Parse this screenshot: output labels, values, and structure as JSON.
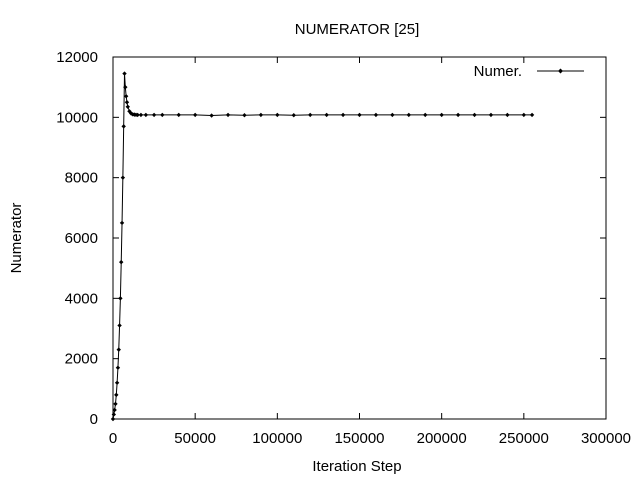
{
  "chart_data": {
    "type": "line",
    "title": "NUMERATOR [25]",
    "xlabel": "Iteration Step",
    "ylabel": "Numerator",
    "xlim": [
      0,
      300000
    ],
    "ylim": [
      0,
      12000
    ],
    "x_ticks": [
      0,
      50000,
      100000,
      150000,
      200000,
      250000,
      300000
    ],
    "x_tick_labels": [
      "0",
      "50000",
      "100000",
      "150000",
      "200000",
      "250000",
      "300000"
    ],
    "y_ticks": [
      0,
      2000,
      4000,
      6000,
      8000,
      10000,
      12000
    ],
    "y_tick_labels": [
      "0",
      "2000",
      "4000",
      "6000",
      "8000",
      "10000",
      "12000"
    ],
    "grid": false,
    "legend_position": "top-right",
    "series": [
      {
        "name": "Numer.",
        "color": "#000000",
        "marker": "diamond",
        "x": [
          0,
          500,
          1000,
          1500,
          2000,
          2500,
          3000,
          3500,
          4000,
          4500,
          5000,
          5500,
          6000,
          6500,
          7000,
          7500,
          8000,
          8500,
          9000,
          10000,
          11000,
          12000,
          13000,
          14000,
          15000,
          17000,
          20000,
          25000,
          30000,
          40000,
          50000,
          60000,
          70000,
          80000,
          90000,
          100000,
          110000,
          120000,
          130000,
          140000,
          150000,
          160000,
          170000,
          180000,
          190000,
          200000,
          210000,
          220000,
          230000,
          240000,
          250000,
          255000
        ],
        "y": [
          0,
          150,
          300,
          500,
          800,
          1200,
          1700,
          2300,
          3100,
          4000,
          5200,
          6500,
          8000,
          9700,
          11450,
          11000,
          10700,
          10500,
          10350,
          10200,
          10130,
          10100,
          10090,
          10085,
          10080,
          10080,
          10080,
          10080,
          10080,
          10080,
          10080,
          10060,
          10080,
          10070,
          10080,
          10080,
          10070,
          10080,
          10080,
          10080,
          10080,
          10080,
          10080,
          10080,
          10080,
          10080,
          10080,
          10080,
          10080,
          10080,
          10080,
          10080
        ]
      }
    ]
  }
}
